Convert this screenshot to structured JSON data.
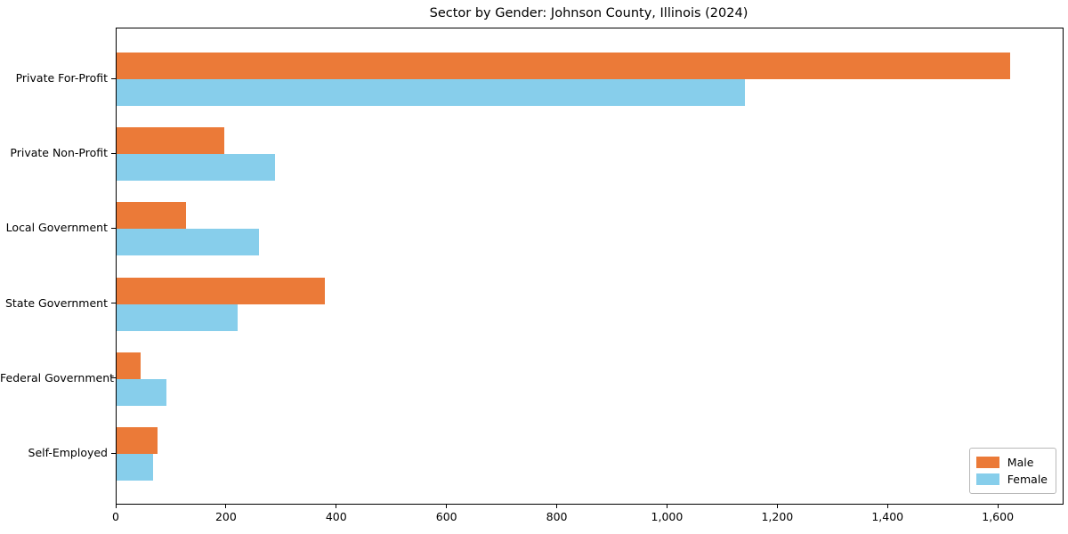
{
  "chart_data": {
    "type": "bar",
    "orientation": "horizontal",
    "title": "Sector by Gender: Johnson County, Illinois (2024)",
    "xlabel": "",
    "ylabel": "",
    "grid": false,
    "legend_position": "lower right",
    "xlim": [
      0,
      1716
    ],
    "x_ticks": [
      0,
      200,
      400,
      600,
      800,
      1000,
      1200,
      1400,
      1600
    ],
    "x_tick_labels": [
      "0",
      "200",
      "400",
      "600",
      "800",
      "1,000",
      "1,200",
      "1,400",
      "1,600"
    ],
    "categories": [
      "Private For-Profit",
      "Private Non-Profit",
      "Local Government",
      "State Government",
      "Federal Government",
      "Self-Employed"
    ],
    "series": [
      {
        "name": "Male",
        "color": "#EB7A38",
        "values": [
          1620,
          195,
          126,
          377,
          43,
          74
        ]
      },
      {
        "name": "Female",
        "color": "#87CEEB",
        "values": [
          1140,
          287,
          258,
          219,
          90,
          66
        ]
      }
    ]
  },
  "colors": {
    "male": "#EB7A38",
    "female": "#87CEEB",
    "spine": "#000000",
    "legend_border": "#b9b9b9",
    "background": "#ffffff",
    "text": "#000000"
  }
}
